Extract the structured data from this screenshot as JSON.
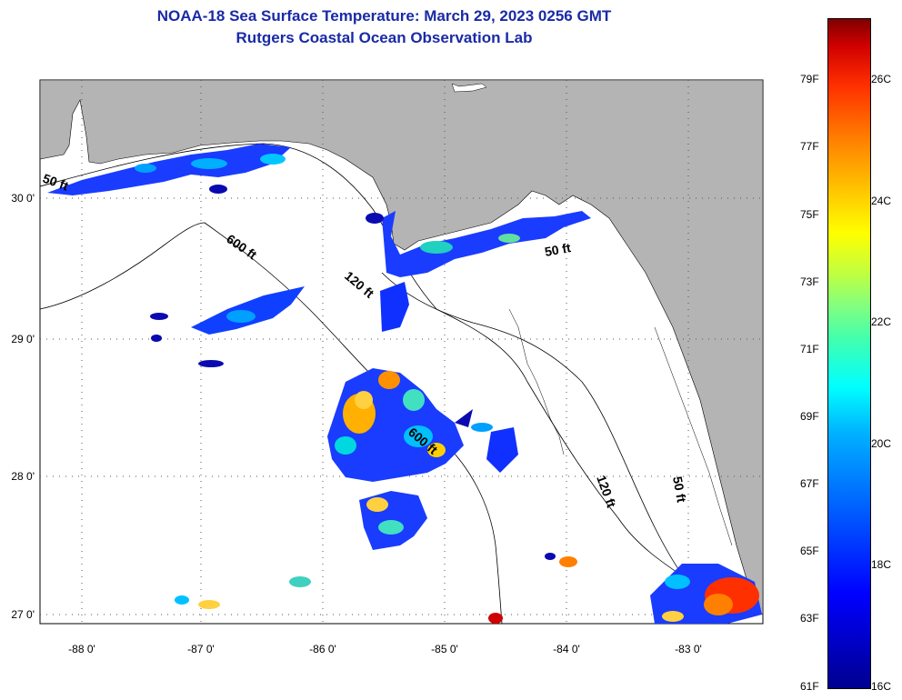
{
  "title": {
    "line1": "NOAA-18 Sea Surface Temperature:  March 29, 2023 0256 GMT",
    "line2": "Rutgers Coastal Ocean Observation Lab"
  },
  "axes": {
    "lon_labels": [
      "-88 0'",
      "-87 0'",
      "-86 0'",
      "-85 0'",
      "-84 0'",
      "-83 0'"
    ],
    "lat_labels": [
      "30 0'",
      "29 0'",
      "28 0'",
      "27 0'"
    ]
  },
  "contours": {
    "label_50_west": "50 ft",
    "label_600_north": "600 ft",
    "label_120_north": "120 ft",
    "label_50_east": "50 ft",
    "label_600_mid": "600 ft",
    "label_120_south": "120 ft",
    "label_50_south": "50 ft"
  },
  "colorbar": {
    "fahrenheit": [
      "79F",
      "77F",
      "75F",
      "73F",
      "71F",
      "69F",
      "67F",
      "65F",
      "63F",
      "61F"
    ],
    "celsius": [
      "26C",
      "24C",
      "22C",
      "20C",
      "18C",
      "16C"
    ]
  },
  "colors": {
    "land": "#b4b4b4",
    "title": "#1a2aa6"
  }
}
